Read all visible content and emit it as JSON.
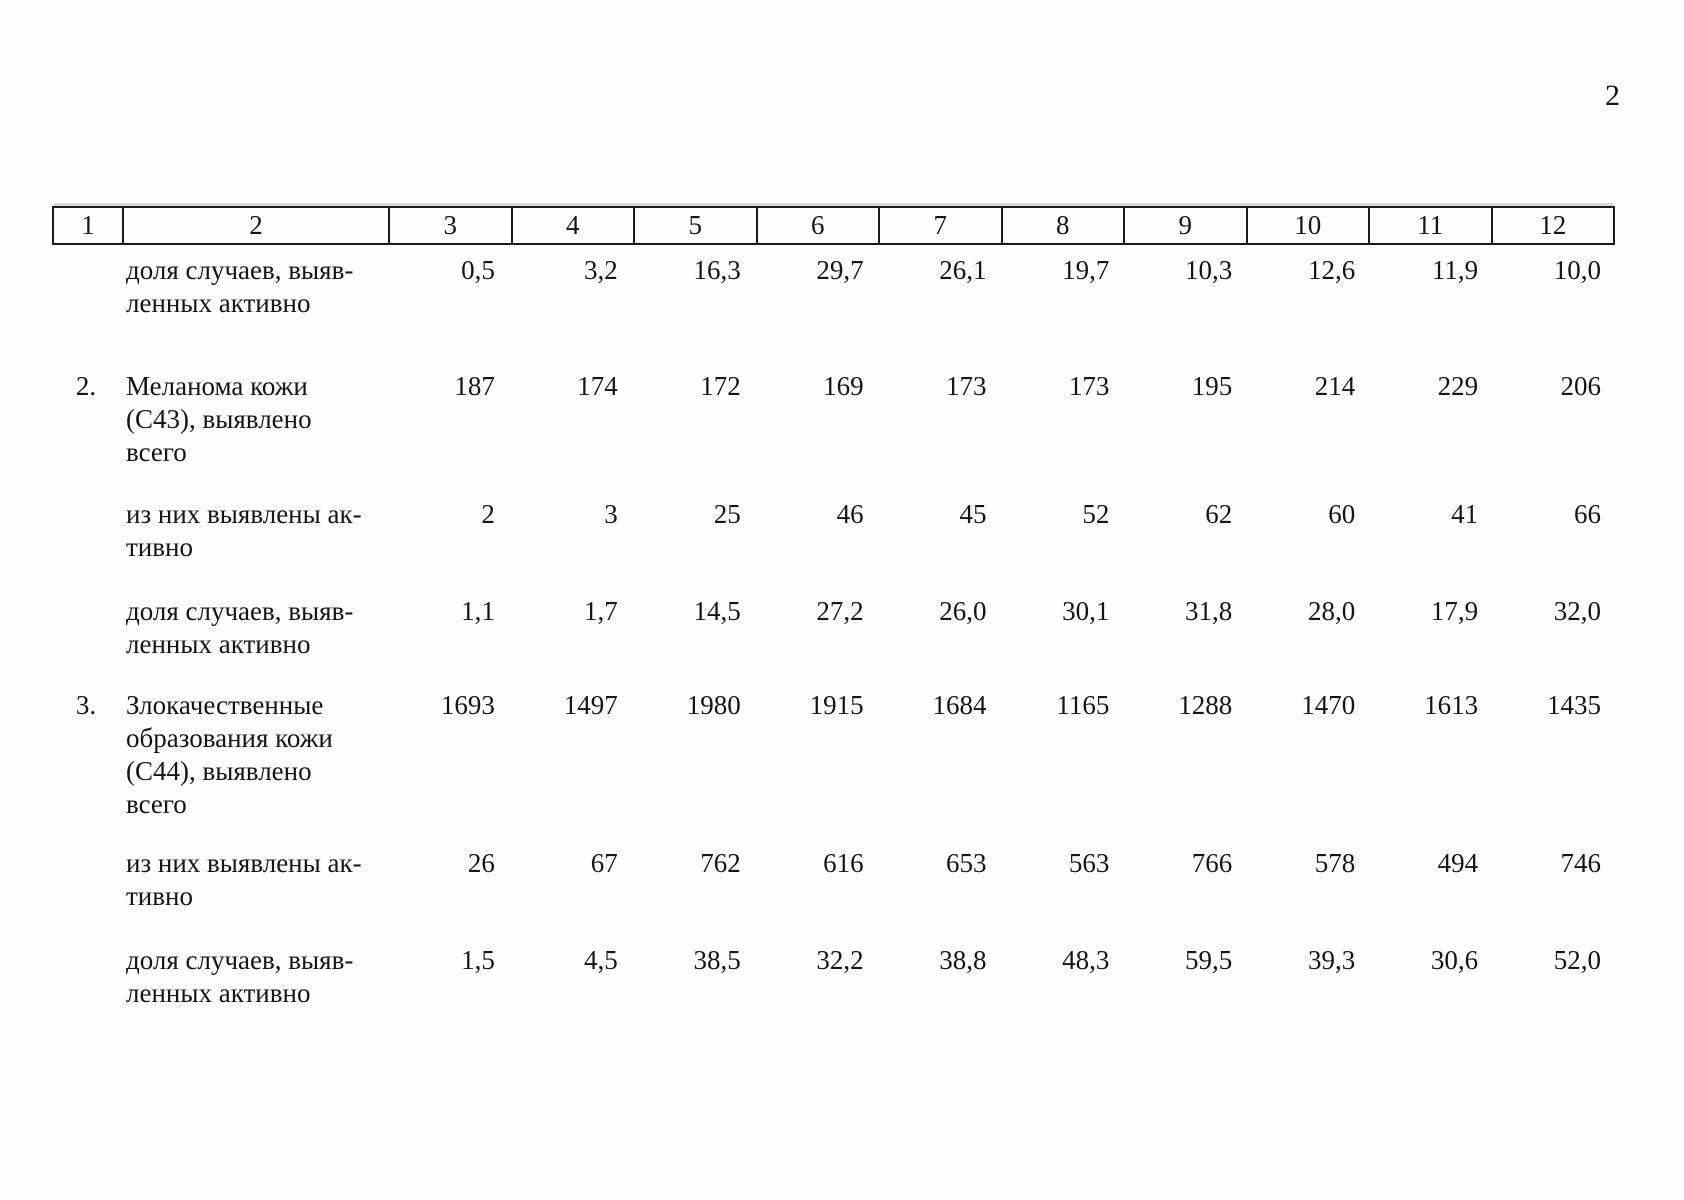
{
  "page": {
    "number": "2"
  },
  "table": {
    "header_cols": [
      "1",
      "2",
      "3",
      "4",
      "5",
      "6",
      "7",
      "8",
      "9",
      "10",
      "11",
      "12"
    ],
    "rows": [
      {
        "num": "",
        "label_lines": [
          "доля случаев, выяв-",
          "ленных активно"
        ],
        "values": [
          "0,5",
          "3,2",
          "16,3",
          "29,7",
          "26,1",
          "19,7",
          "10,3",
          "12,6",
          "11,9",
          "10,0"
        ]
      },
      {
        "num": "2.",
        "label_lines": [
          "Меланома кожи",
          "(С43), выявлено",
          "всего"
        ],
        "values": [
          "187",
          "174",
          "172",
          "169",
          "173",
          "173",
          "195",
          "214",
          "229",
          "206"
        ]
      },
      {
        "num": "",
        "label_lines": [
          "из них выявлены ак-",
          "тивно"
        ],
        "values": [
          "2",
          "3",
          "25",
          "46",
          "45",
          "52",
          "62",
          "60",
          "41",
          "66"
        ]
      },
      {
        "num": "",
        "label_lines": [
          "доля случаев, выяв-",
          "ленных активно"
        ],
        "values": [
          "1,1",
          "1,7",
          "14,5",
          "27,2",
          "26,0",
          "30,1",
          "31,8",
          "28,0",
          "17,9",
          "32,0"
        ]
      },
      {
        "num": "3.",
        "label_lines": [
          "Злокачественные",
          "образования кожи",
          "(С44), выявлено",
          "всего"
        ],
        "values": [
          "1693",
          "1497",
          "1980",
          "1915",
          "1684",
          "1165",
          "1288",
          "1470",
          "1613",
          "1435"
        ]
      },
      {
        "num": "",
        "label_lines": [
          "из них выявлены ак-",
          "тивно"
        ],
        "values": [
          "26",
          "67",
          "762",
          "616",
          "653",
          "563",
          "766",
          "578",
          "494",
          "746"
        ]
      },
      {
        "num": "",
        "label_lines": [
          "доля случаев, выяв-",
          "ленных активно"
        ],
        "values": [
          "1,5",
          "4,5",
          "38,5",
          "32,2",
          "38,8",
          "48,3",
          "59,5",
          "39,3",
          "30,6",
          "52,0"
        ]
      }
    ]
  }
}
